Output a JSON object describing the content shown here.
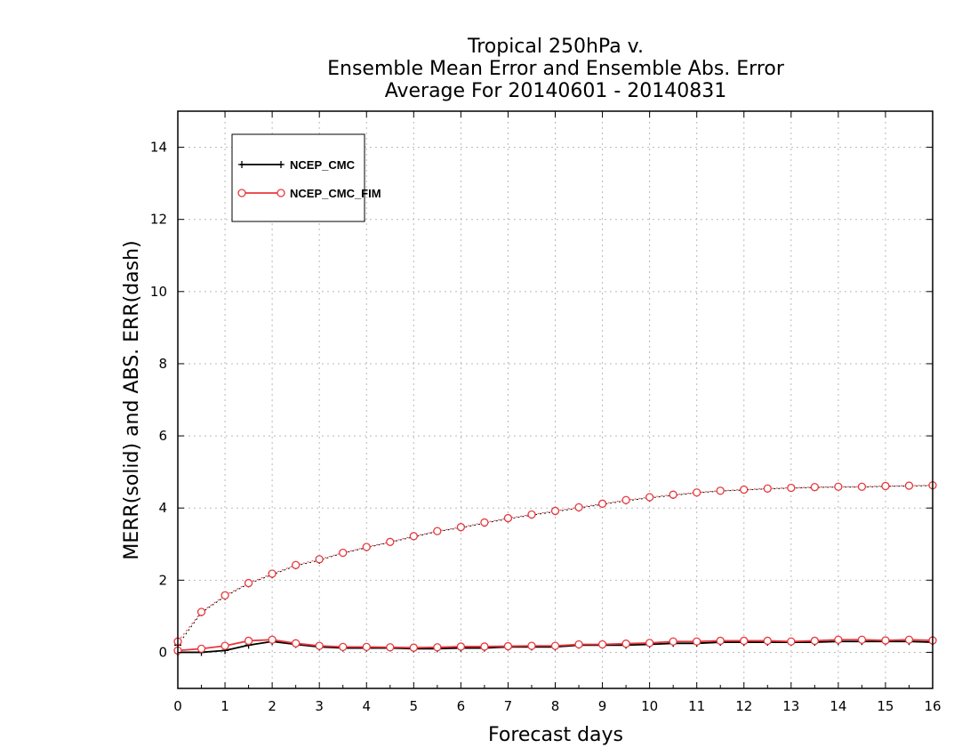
{
  "chart_data": {
    "type": "line",
    "title": [
      "Tropical 250hPa v.",
      "Ensemble Mean Error and Ensemble Abs. Error",
      "Average For 20140601 - 20140831"
    ],
    "xlabel": "Forecast days",
    "ylabel": "MERR(solid) and ABS. ERR(dash)",
    "xlim": [
      0,
      16
    ],
    "ylim": [
      -1,
      15
    ],
    "xticks": [
      0,
      1,
      2,
      3,
      4,
      5,
      6,
      7,
      8,
      9,
      10,
      11,
      12,
      13,
      14,
      15,
      16
    ],
    "yticks": [
      0,
      2,
      4,
      6,
      8,
      10,
      12,
      14
    ],
    "grid": true,
    "legend_position": "top-left",
    "x": [
      0,
      0.5,
      1,
      1.5,
      2,
      2.5,
      3,
      3.5,
      4,
      4.5,
      5,
      5.5,
      6,
      6.5,
      7,
      7.5,
      8,
      8.5,
      9,
      9.5,
      10,
      10.5,
      11,
      11.5,
      12,
      12.5,
      13,
      13.5,
      14,
      14.5,
      15,
      15.5,
      16
    ],
    "series": [
      {
        "name": "NCEP_CMC",
        "color": "#000000",
        "marker": "plus",
        "mean_error": [
          0.0,
          0.0,
          0.05,
          0.2,
          0.3,
          0.22,
          0.15,
          0.12,
          0.12,
          0.12,
          0.1,
          0.1,
          0.12,
          0.12,
          0.15,
          0.15,
          0.15,
          0.2,
          0.2,
          0.2,
          0.22,
          0.25,
          0.25,
          0.28,
          0.28,
          0.28,
          0.28,
          0.28,
          0.3,
          0.3,
          0.3,
          0.3,
          0.28
        ],
        "abs_error": [
          0.2,
          1.1,
          1.55,
          1.9,
          2.15,
          2.4,
          2.55,
          2.75,
          2.9,
          3.05,
          3.2,
          3.35,
          3.45,
          3.58,
          3.7,
          3.8,
          3.9,
          4.0,
          4.1,
          4.2,
          4.28,
          4.35,
          4.42,
          4.47,
          4.5,
          4.53,
          4.55,
          4.57,
          4.58,
          4.58,
          4.6,
          4.61,
          4.62
        ]
      },
      {
        "name": "NCEP_CMC_FIM",
        "color": "#e8383d",
        "marker": "circle",
        "mean_error": [
          0.05,
          0.1,
          0.18,
          0.32,
          0.35,
          0.25,
          0.18,
          0.15,
          0.15,
          0.14,
          0.13,
          0.14,
          0.16,
          0.16,
          0.17,
          0.18,
          0.18,
          0.22,
          0.22,
          0.24,
          0.26,
          0.3,
          0.3,
          0.32,
          0.32,
          0.32,
          0.3,
          0.32,
          0.35,
          0.35,
          0.33,
          0.35,
          0.33
        ],
        "abs_error": [
          0.3,
          1.12,
          1.58,
          1.92,
          2.18,
          2.42,
          2.58,
          2.76,
          2.92,
          3.06,
          3.22,
          3.36,
          3.47,
          3.6,
          3.72,
          3.82,
          3.92,
          4.02,
          4.12,
          4.22,
          4.3,
          4.37,
          4.43,
          4.48,
          4.51,
          4.54,
          4.56,
          4.58,
          4.59,
          4.59,
          4.61,
          4.62,
          4.63
        ]
      }
    ]
  }
}
